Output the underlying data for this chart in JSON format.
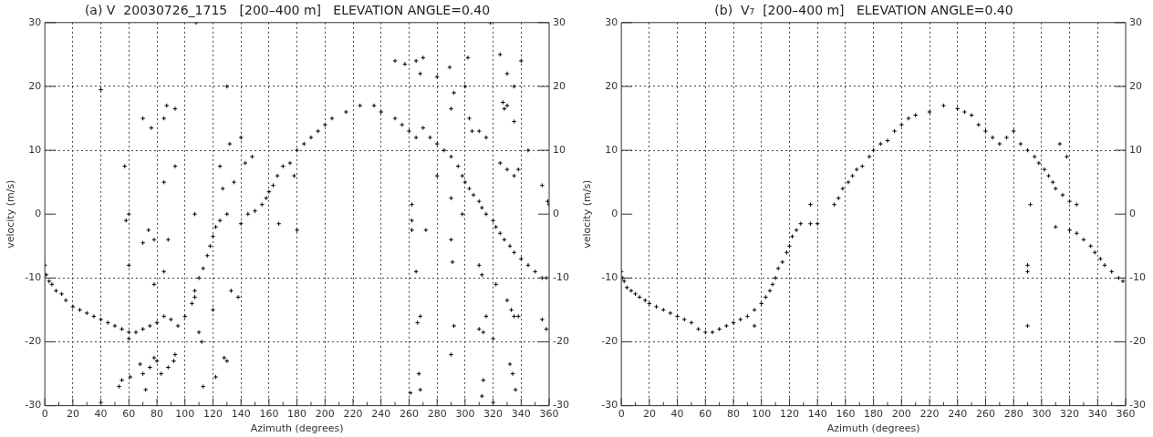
{
  "chart_data": [
    {
      "type": "scatter",
      "title": "(a) V  20030726_1715   [200–400 m]   ELEVATION ANGLE=0.40",
      "xlabel": "Azimuth (degrees)",
      "ylabel": "velocity (m/s)",
      "marker": "cross",
      "grid": true,
      "xlim": [
        0,
        360
      ],
      "xticks": [
        0,
        {
          "value": 10,
          "label": null
        },
        20,
        {
          "value": 30,
          "label": null
        },
        40,
        {
          "value": 50,
          "label": null
        },
        60,
        {
          "value": 70,
          "label": null
        },
        80,
        {
          "value": 90,
          "label": null
        },
        100,
        {
          "value": 110,
          "label": null
        },
        120,
        {
          "value": 130,
          "label": null
        },
        140,
        {
          "value": 150,
          "label": null
        },
        160,
        {
          "value": 170,
          "label": null
        },
        180,
        {
          "value": 190,
          "label": null
        },
        200,
        {
          "value": 210,
          "label": null
        },
        220,
        {
          "value": 230,
          "label": null
        },
        240,
        {
          "value": 250,
          "label": null
        },
        260,
        {
          "value": 270,
          "label": null
        },
        280,
        {
          "value": 290,
          "label": null
        },
        300,
        {
          "value": 310,
          "label": null
        },
        320,
        {
          "value": 330,
          "label": null
        },
        340,
        {
          "value": 350,
          "label": null
        },
        360
      ],
      "ylim": [
        -30,
        30
      ],
      "yticks": [
        -30,
        -20,
        -10,
        0,
        10,
        20,
        30
      ],
      "y2lim": [
        -30,
        30
      ],
      "y2ticks": [
        -30,
        -20,
        -10,
        0,
        10,
        20,
        30
      ],
      "series": [
        {
          "color": "#000000",
          "x": [
            0,
            1,
            3,
            5,
            8,
            12,
            15,
            20,
            25,
            30,
            35,
            40,
            45,
            50,
            55,
            60,
            65,
            70,
            60,
            75,
            80,
            85,
            90,
            95,
            100,
            105,
            107,
            110,
            113,
            116,
            118,
            120,
            122,
            125,
            130,
            140,
            145,
            150,
            155,
            158,
            160,
            163,
            166,
            170,
            175,
            180,
            185,
            190,
            195,
            200,
            205,
            215,
            225,
            235,
            240,
            250,
            255,
            260,
            265,
            270,
            275,
            280,
            285,
            290,
            295,
            298,
            300,
            303,
            306,
            310,
            312,
            315,
            320,
            322,
            325,
            328,
            332,
            335,
            340,
            345,
            350,
            355,
            358,
            40,
            40,
            57,
            58,
            60,
            60,
            55,
            53,
            61,
            68,
            70,
            72,
            75,
            78,
            80,
            83,
            88,
            92,
            93,
            70,
            76,
            85,
            87,
            93,
            93,
            85,
            74,
            70,
            78,
            88,
            78,
            85,
            107,
            107,
            110,
            112,
            113,
            120,
            122,
            128,
            130,
            132,
            135,
            127,
            133,
            138,
            125,
            140,
            143,
            148,
            108,
            130,
            167,
            180,
            178,
            262,
            262,
            265,
            266,
            267,
            268,
            261,
            268,
            272,
            262,
            280,
            290,
            290,
            291,
            292,
            290,
            290,
            292,
            289,
            298,
            310,
            312,
            315,
            310,
            313,
            320,
            313,
            312,
            320,
            322,
            330,
            333,
            335,
            332,
            334,
            336,
            338,
            355,
            358,
            355,
            359,
            360,
            303,
            305,
            310,
            315,
            327,
            328,
            335,
            325,
            330,
            335,
            338,
            265,
            268,
            270,
            280,
            300,
            302,
            318,
            325,
            330,
            335,
            340,
            330,
            345,
            250,
            257
          ],
          "values": [
            -8,
            -9.5,
            -10.5,
            -11,
            -12,
            -12.5,
            -13.5,
            -14.5,
            -15,
            -15.5,
            -16,
            -16.5,
            -17,
            -17.5,
            -18,
            -18.5,
            -18.5,
            -18,
            -19.5,
            -17.5,
            -17,
            -16,
            -16.5,
            -17.5,
            -16,
            -14,
            -12,
            -10,
            -8.5,
            -6.5,
            -5,
            -3.5,
            -2,
            -1,
            0,
            -1.5,
            0,
            0.5,
            1.5,
            2.5,
            3.5,
            4.5,
            6,
            7.5,
            8,
            10,
            11,
            12,
            13,
            14,
            15,
            16,
            17,
            17,
            16,
            15,
            14,
            13,
            12,
            13.5,
            12,
            11,
            10,
            9,
            7.5,
            6,
            5,
            4,
            3,
            2,
            1,
            0,
            -1,
            -2,
            -3,
            -4,
            -5,
            -6,
            -7,
            -8,
            -9,
            -10,
            -10,
            -29.5,
            19.5,
            7.5,
            -1,
            0,
            -8,
            -26,
            -27,
            -25.5,
            -23.5,
            -25,
            -27.5,
            -24,
            -22.5,
            -23,
            -25,
            -24,
            -23,
            -22,
            15,
            13.5,
            15,
            17,
            16.5,
            7.5,
            5,
            -2.5,
            -4.5,
            -4,
            -4,
            -11,
            -9,
            0,
            -13,
            -18.5,
            -20,
            -27,
            -15,
            -25.5,
            -22.5,
            -23,
            11,
            5,
            4,
            -12,
            -13,
            7.5,
            12,
            8,
            9,
            30,
            20,
            -1.5,
            -2.5,
            6,
            1.5,
            -1,
            -9,
            -17,
            -25,
            -27.5,
            -28,
            -16,
            -2.5,
            -2.5,
            6,
            2.5,
            -4,
            -7.5,
            -17.5,
            -22,
            16.5,
            19,
            23,
            0,
            -8,
            -9.5,
            -16,
            -18,
            -18.5,
            -19.5,
            -26,
            -28.5,
            -29.5,
            -11,
            -13.5,
            -15,
            -16,
            -23.5,
            -25,
            -27.5,
            -16,
            -16.5,
            -18,
            4.5,
            2,
            1.5,
            15,
            13,
            13,
            12,
            17.5,
            16.5,
            14.5,
            8,
            7,
            6,
            7,
            24,
            22,
            24.5,
            21.5,
            20,
            24.5,
            30,
            25,
            22,
            20,
            24,
            17,
            10,
            24,
            23.5
          ]
        }
      ]
    },
    {
      "type": "scatter",
      "title": "(b)  V₇  [200–400 m]   ELEVATION ANGLE=0.40",
      "xlabel": "Azimuth (degrees)",
      "ylabel": "velocity (m/s)",
      "marker": "cross",
      "grid": true,
      "xlim": [
        0,
        360
      ],
      "xticks": [
        0,
        {
          "value": 10,
          "label": null
        },
        20,
        {
          "value": 30,
          "label": null
        },
        40,
        {
          "value": 50,
          "label": null
        },
        60,
        {
          "value": 70,
          "label": null
        },
        80,
        {
          "value": 90,
          "label": null
        },
        100,
        {
          "value": 110,
          "label": null
        },
        120,
        {
          "value": 130,
          "label": null
        },
        140,
        {
          "value": 150,
          "label": null
        },
        160,
        {
          "value": 170,
          "label": null
        },
        180,
        {
          "value": 190,
          "label": null
        },
        200,
        {
          "value": 210,
          "label": null
        },
        220,
        {
          "value": 230,
          "label": null
        },
        240,
        {
          "value": 250,
          "label": null
        },
        260,
        {
          "value": 270,
          "label": null
        },
        280,
        {
          "value": 290,
          "label": null
        },
        300,
        {
          "value": 310,
          "label": null
        },
        320,
        {
          "value": 330,
          "label": null
        },
        340,
        {
          "value": 350,
          "label": null
        },
        360
      ],
      "ylim": [
        -30,
        30
      ],
      "yticks": [
        -30,
        -20,
        -10,
        0,
        10,
        20,
        30
      ],
      "y2lim": [
        -30,
        30
      ],
      "y2ticks": [
        -30,
        -20,
        -10,
        0,
        10,
        20,
        30
      ],
      "series": [
        {
          "color": "#000000",
          "x": [
            0,
            1,
            2,
            4,
            7,
            10,
            13,
            17,
            20,
            25,
            30,
            35,
            40,
            45,
            50,
            55,
            60,
            65,
            70,
            75,
            80,
            85,
            90,
            95,
            95,
            100,
            103,
            106,
            108,
            110,
            112,
            115,
            118,
            120,
            122,
            125,
            128,
            135,
            140,
            135,
            152,
            155,
            158,
            162,
            165,
            168,
            172,
            177,
            180,
            185,
            190,
            195,
            200,
            205,
            210,
            220,
            230,
            240,
            245,
            250,
            255,
            260,
            265,
            270,
            275,
            280,
            285,
            290,
            295,
            298,
            302,
            305,
            308,
            310,
            315,
            320,
            325,
            310,
            320,
            325,
            330,
            335,
            338,
            342,
            345,
            350,
            355,
            358,
            290,
            290,
            290,
            313,
            318,
            292
          ],
          "values": [
            -9,
            -10,
            -10.5,
            -11.5,
            -12,
            -12.5,
            -13,
            -13.5,
            -14,
            -14.5,
            -15,
            -15.5,
            -16,
            -16.5,
            -17,
            -18,
            -18.5,
            -18.5,
            -18,
            -17.5,
            -17,
            -16.5,
            -16,
            -17.5,
            -15,
            -14,
            -13,
            -12,
            -11,
            -10,
            -8.5,
            -7.5,
            -6,
            -5,
            -3.5,
            -2.5,
            -1.5,
            -1.5,
            -1.5,
            1.5,
            1.5,
            2.5,
            4,
            5,
            6,
            7,
            7.5,
            9,
            10,
            11,
            11.5,
            13,
            14,
            15,
            15.5,
            16,
            17,
            16.5,
            16,
            15.5,
            14,
            13,
            12,
            11,
            12,
            13,
            11,
            10,
            9,
            8,
            7,
            6,
            5,
            4,
            3,
            2,
            1.5,
            -2,
            -2.5,
            -3,
            -4,
            -5,
            -6,
            -7,
            -8,
            -9,
            -10,
            -10.5,
            -8,
            -9,
            -17.5,
            11,
            9,
            1.5
          ]
        }
      ]
    }
  ]
}
